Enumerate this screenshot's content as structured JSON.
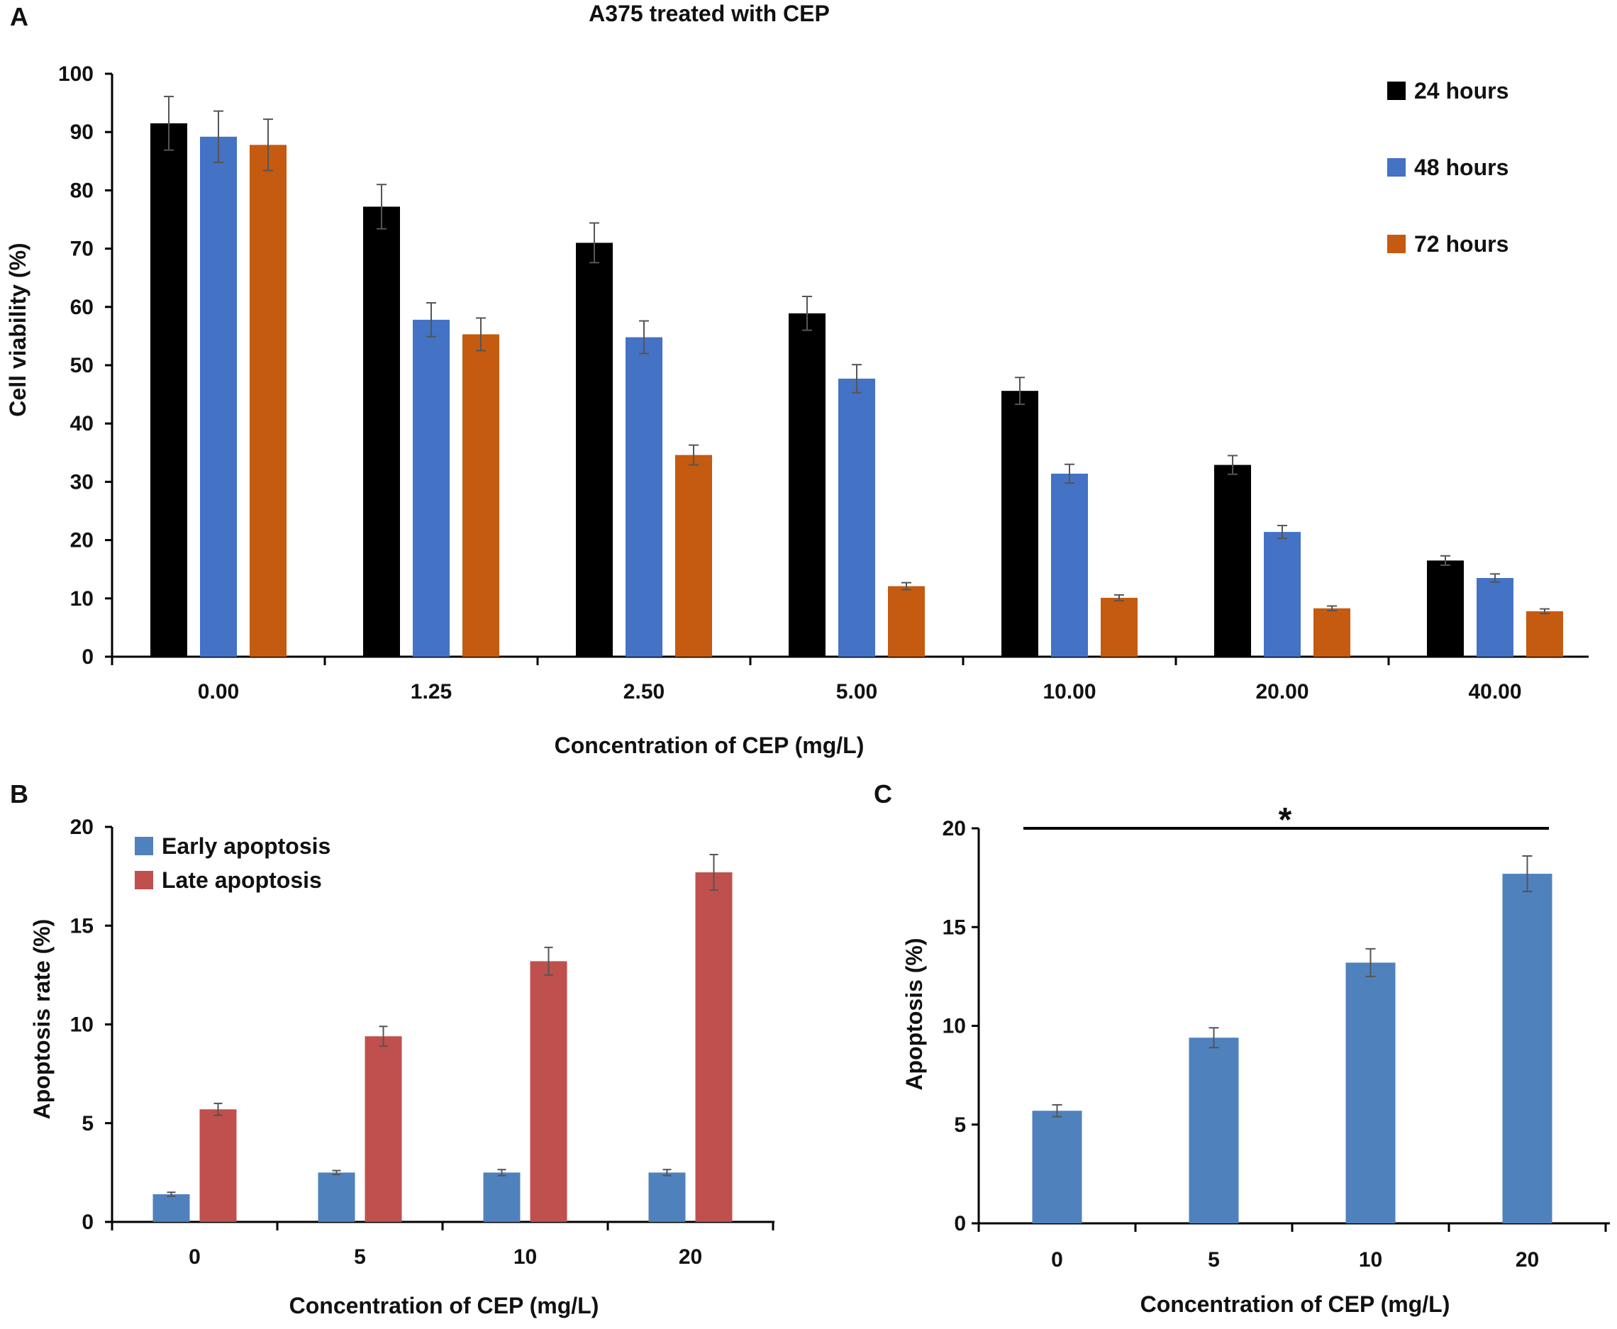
{
  "chart_data": [
    {
      "panel": "A",
      "type": "bar",
      "title": "A375 treated with CEP",
      "xlabel": "Concentration of CEP (mg/L)",
      "ylabel": "Cell  viability (%)",
      "ylim": [
        0,
        100
      ],
      "yticks": [
        0,
        10,
        20,
        30,
        40,
        50,
        60,
        70,
        80,
        90,
        100
      ],
      "categories": [
        "0.00",
        "1.25",
        "2.50",
        "5.00",
        "10.00",
        "20.00",
        "40.00"
      ],
      "legend_position": "top-right",
      "series": [
        {
          "name": "24 hours",
          "color": "#000000",
          "values": [
            91.5,
            77.2,
            71.0,
            58.9,
            45.6,
            32.9,
            16.5
          ],
          "errors": [
            4.6,
            3.8,
            3.4,
            2.9,
            2.3,
            1.6,
            0.8
          ]
        },
        {
          "name": "48 hours",
          "color": "#4472C4",
          "values": [
            89.2,
            57.8,
            54.8,
            47.7,
            31.4,
            21.4,
            13.5
          ],
          "errors": [
            4.4,
            2.9,
            2.8,
            2.4,
            1.6,
            1.1,
            0.7
          ]
        },
        {
          "name": "72 hours",
          "color": "#C55A11",
          "values": [
            87.8,
            55.3,
            34.6,
            12.1,
            10.1,
            8.3,
            7.8
          ],
          "errors": [
            4.4,
            2.8,
            1.7,
            0.6,
            0.5,
            0.4,
            0.4
          ]
        }
      ]
    },
    {
      "panel": "B",
      "type": "bar",
      "title": "",
      "xlabel": "Concentration of CEP (mg/L)",
      "ylabel": "Apoptosis rate (%)",
      "ylim": [
        0,
        20
      ],
      "yticks": [
        0,
        5,
        10,
        15,
        20
      ],
      "categories": [
        "0",
        "5",
        "10",
        "20"
      ],
      "legend_position": "top-left",
      "series": [
        {
          "name": "Early apoptosis",
          "color": "#4F81BD",
          "values": [
            1.4,
            2.5,
            2.5,
            2.5
          ],
          "errors": [
            0.1,
            0.1,
            0.15,
            0.15
          ]
        },
        {
          "name": "Late apoptosis",
          "color": "#C0504D",
          "values": [
            5.7,
            9.4,
            13.2,
            17.7
          ],
          "errors": [
            0.3,
            0.5,
            0.7,
            0.9
          ]
        }
      ]
    },
    {
      "panel": "C",
      "type": "bar",
      "title": "",
      "xlabel": "Concentration of CEP (mg/L)",
      "ylabel": "Apoptosis (%)",
      "ylim": [
        0,
        20
      ],
      "yticks": [
        0,
        5,
        10,
        15,
        20
      ],
      "categories": [
        "0",
        "5",
        "10",
        "20"
      ],
      "significance": "*",
      "series": [
        {
          "name": "Apoptosis",
          "color": "#4F81BD",
          "values": [
            5.7,
            9.4,
            13.2,
            17.7
          ],
          "errors": [
            0.3,
            0.5,
            0.7,
            0.9
          ]
        }
      ]
    }
  ]
}
